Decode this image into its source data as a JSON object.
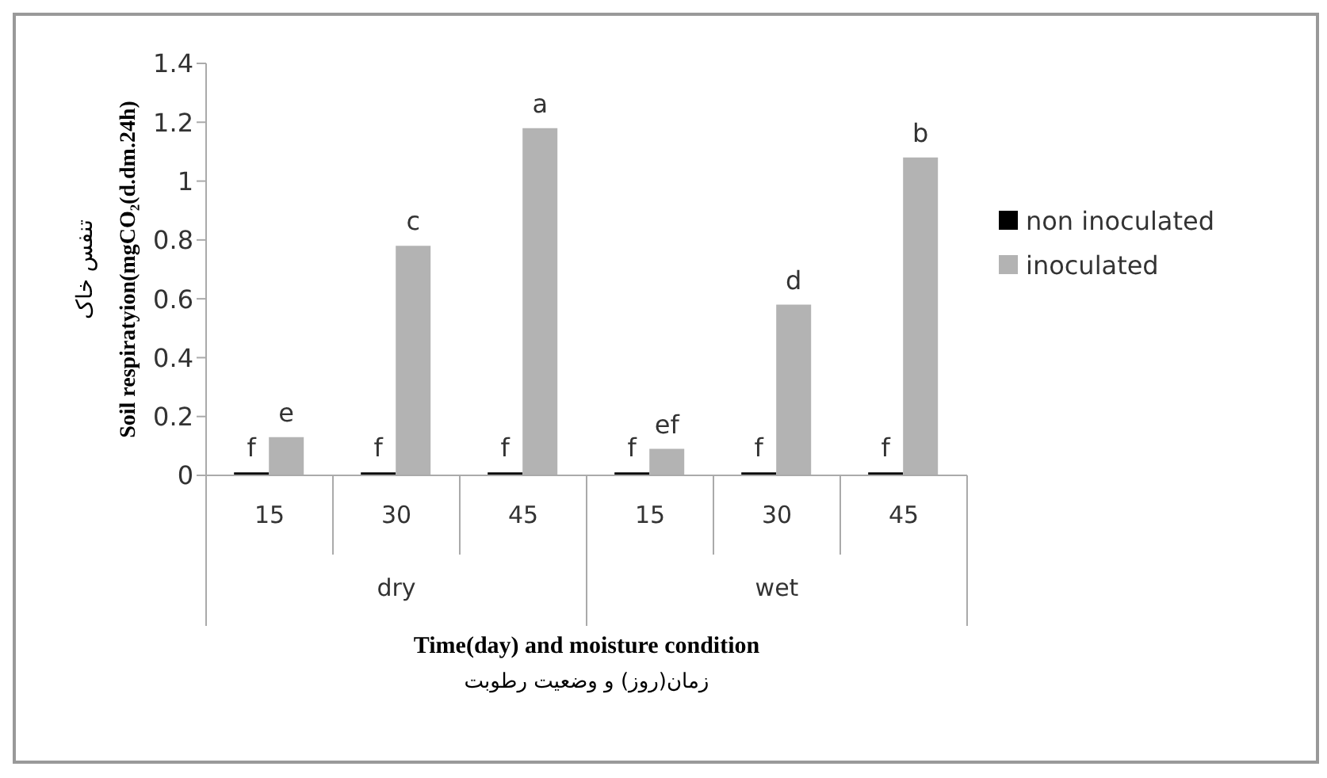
{
  "chart_data": {
    "type": "bar",
    "xlabel": "Time(day) and moisture condition",
    "ylabel": "Soil respiratyion(mgCO₂(d.dm.24h)",
    "categories": [
      "15",
      "30",
      "45",
      "15",
      "30",
      "45"
    ],
    "series": [
      {
        "name": "non inoculated",
        "color": "#000000",
        "values": [
          0.01,
          0.01,
          0.01,
          0.01,
          0.01,
          0.01
        ],
        "value_labels": [
          "f",
          "f",
          "f",
          "f",
          "f",
          "f"
        ]
      },
      {
        "name": "inoculated",
        "color": "#b3b3b3",
        "values": [
          0.13,
          0.78,
          1.18,
          0.09,
          0.58,
          1.08
        ],
        "value_labels": [
          "e",
          "c",
          "a",
          "ef",
          "d",
          "b"
        ]
      }
    ],
    "ylim": [
      0,
      1.4
    ],
    "yticks": [
      0,
      0.2,
      0.4,
      0.6,
      0.8,
      1,
      1.2,
      1.4
    ],
    "grid": false,
    "legend": "right",
    "annotations": [
      "dry",
      "wet",
      "تنفس خاک",
      "زمان(روز) و وضعیت رطوبت"
    ]
  }
}
